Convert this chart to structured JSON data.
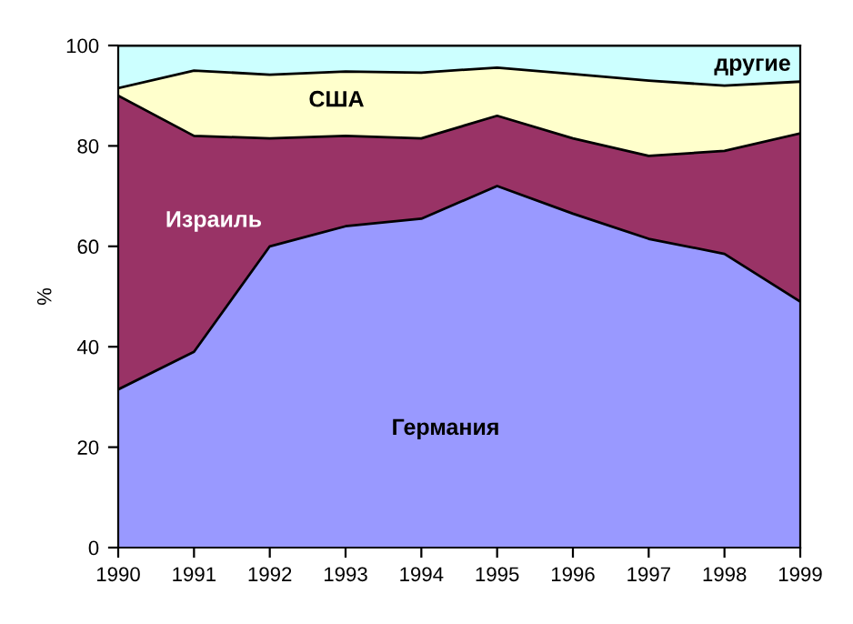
{
  "chart_data": {
    "type": "area",
    "stacked": true,
    "ylabel": "%",
    "x": [
      1990,
      1991,
      1992,
      1993,
      1994,
      1995,
      1996,
      1997,
      1998,
      1999
    ],
    "series": [
      {
        "name": "Германия",
        "color": "#9999ff",
        "values": [
          31.5,
          39,
          60,
          64,
          65.5,
          72,
          66.5,
          61.5,
          58.5,
          49
        ]
      },
      {
        "name": "Израиль",
        "color": "#993366",
        "values": [
          58.5,
          43,
          21.5,
          18,
          16,
          14,
          15,
          16.5,
          20.5,
          33.5
        ]
      },
      {
        "name": "США",
        "color": "#ffffcc",
        "values": [
          1.5,
          13,
          12.7,
          12.8,
          13.1,
          9.6,
          12.8,
          15,
          13,
          10.3
        ]
      },
      {
        "name": "другие",
        "color": "#ccffff",
        "values": [
          8.5,
          5,
          5.8,
          5.2,
          5.4,
          4.4,
          5.7,
          7,
          8,
          7.2
        ]
      }
    ],
    "xlim": [
      1990,
      1999
    ],
    "xticks": [
      1990,
      1991,
      1992,
      1993,
      1994,
      1995,
      1996,
      1997,
      1998,
      1999
    ],
    "ylim": [
      0,
      100
    ],
    "yticks": [
      0,
      20,
      40,
      60,
      80,
      100
    ],
    "grid": false,
    "legend": false
  }
}
